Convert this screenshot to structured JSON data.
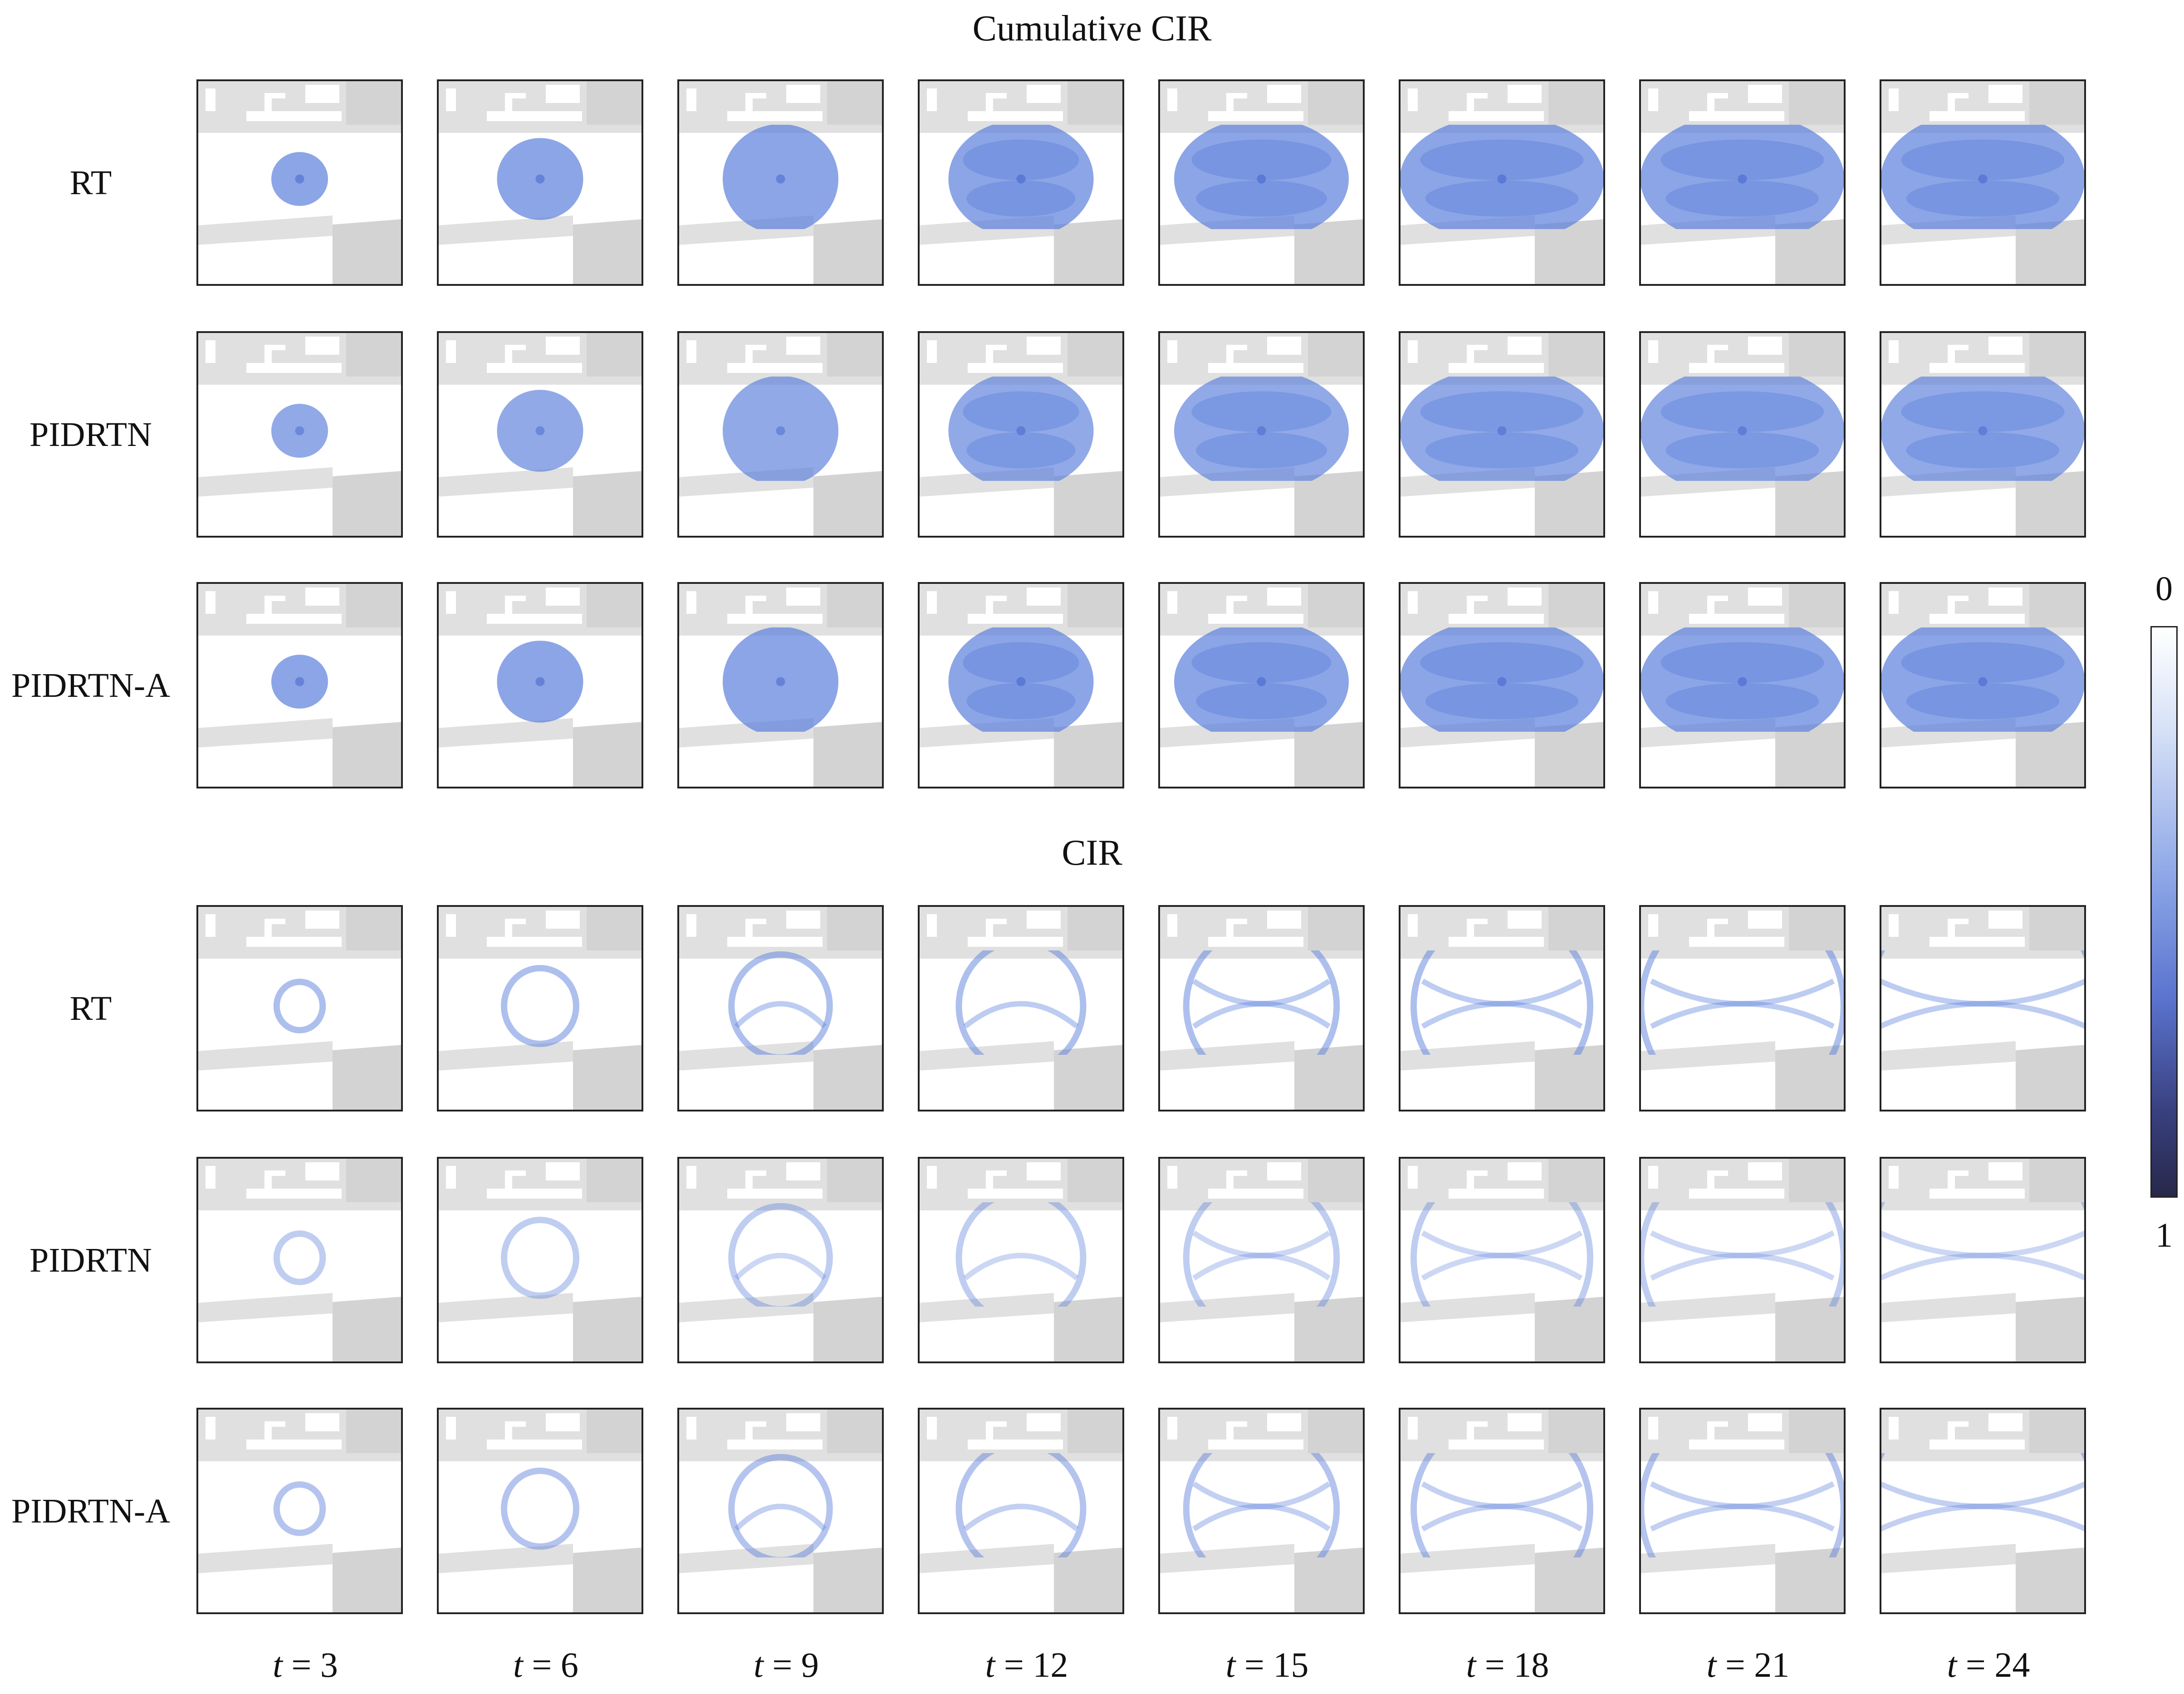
{
  "sections": [
    {
      "title": "Cumulative CIR",
      "mode": "cumulative",
      "rows": [
        {
          "label": "RT",
          "variant": "sharp",
          "intensity": 1.0
        },
        {
          "label": "PIDRTN",
          "variant": "smooth",
          "intensity": 0.9
        },
        {
          "label": "PIDRTN-A",
          "variant": "attention",
          "intensity": 1.0
        }
      ]
    },
    {
      "title": "CIR",
      "mode": "instant",
      "rows": [
        {
          "label": "RT",
          "variant": "sharp",
          "intensity": 1.0
        },
        {
          "label": "PIDRTN",
          "variant": "smooth",
          "intensity": 0.55
        },
        {
          "label": "PIDRTN-A",
          "variant": "attention",
          "intensity": 0.85
        }
      ]
    }
  ],
  "time_steps": [
    {
      "var": "t",
      "eq": " = ",
      "value": "3"
    },
    {
      "var": "t",
      "eq": " = ",
      "value": "6"
    },
    {
      "var": "t",
      "eq": " = ",
      "value": "9"
    },
    {
      "var": "t",
      "eq": " = ",
      "value": "12"
    },
    {
      "var": "t",
      "eq": " = ",
      "value": "15"
    },
    {
      "var": "t",
      "eq": " = ",
      "value": "18"
    },
    {
      "var": "t",
      "eq": " = ",
      "value": "21"
    },
    {
      "var": "t",
      "eq": " = ",
      "value": "24"
    }
  ],
  "colorbar": {
    "top_label": "0",
    "bottom_label": "1",
    "colors": [
      "#ffffff",
      "#8aa4e6",
      "#5b74cf",
      "#27284a"
    ]
  },
  "colors": {
    "wave": "#5b7fdb",
    "building": "#e0e0e0",
    "building_dark": "#d3d3d3",
    "frame": "#222222"
  }
}
